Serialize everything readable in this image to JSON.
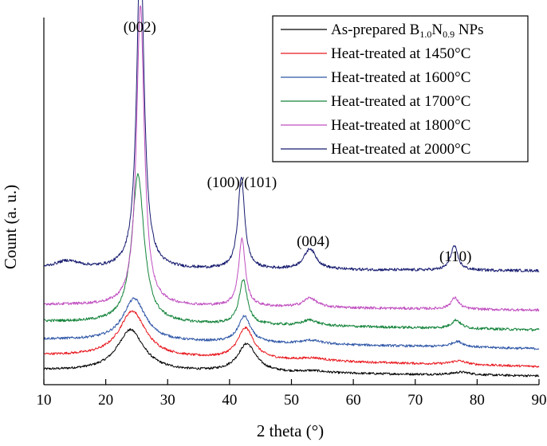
{
  "chart_data": {
    "type": "line",
    "title": "",
    "xlabel": "2 theta (°)",
    "ylabel": "Count (a. u.)",
    "xlim": [
      10,
      90
    ],
    "xticks": [
      10,
      20,
      30,
      40,
      50,
      60,
      70,
      80,
      90
    ],
    "y_ticks_labeled": false,
    "grid": false,
    "legend_position": "top-right",
    "annotations": [
      {
        "text": "(002)",
        "x": 25.5
      },
      {
        "text": "(100)/(101)",
        "x": 42
      },
      {
        "text": "(004)",
        "x": 53.5
      },
      {
        "text": "(110)",
        "x": 76.5
      }
    ],
    "series": [
      {
        "name": "As-prepared B1.0N0.9 NPs",
        "legend_parts": [
          [
            "As-prepared B",
            ""
          ],
          [
            "1.0",
            "sub"
          ],
          [
            "N",
            ""
          ],
          [
            "0.9",
            "sub"
          ],
          [
            " NPs",
            ""
          ]
        ],
        "color": "#000000",
        "base": 0.0,
        "baseline_slope": -0.06,
        "noise": 0.012,
        "peaks": [
          {
            "center": 24.0,
            "height": 0.44,
            "width": 2.6
          },
          {
            "center": 42.8,
            "height": 0.3,
            "width": 1.8
          },
          {
            "center": 53.5,
            "height": 0.02,
            "width": 2.5
          },
          {
            "center": 77.5,
            "height": 0.03,
            "width": 1.8
          }
        ]
      },
      {
        "name": "Heat-treated at 1450°C",
        "color": "#e8191f",
        "base": 0.16,
        "baseline_slope": -0.12,
        "noise": 0.012,
        "peaks": [
          {
            "center": 24.3,
            "height": 0.49,
            "width": 2.6
          },
          {
            "center": 42.6,
            "height": 0.33,
            "width": 1.6
          },
          {
            "center": 53.5,
            "height": 0.03,
            "width": 2.5
          },
          {
            "center": 77.0,
            "height": 0.04,
            "width": 1.5
          }
        ]
      },
      {
        "name": "Heat-treated at 1600°C",
        "color": "#2e56a7",
        "base": 0.33,
        "baseline_slope": -0.1,
        "noise": 0.013,
        "peaks": [
          {
            "center": 24.6,
            "height": 0.45,
            "width": 2.2
          },
          {
            "center": 42.4,
            "height": 0.28,
            "width": 1.2
          },
          {
            "center": 53.2,
            "height": 0.04,
            "width": 2.0
          },
          {
            "center": 76.8,
            "height": 0.06,
            "width": 1.2
          }
        ]
      },
      {
        "name": "Heat-treated at 1700°C",
        "color": "#13833a",
        "base": 0.52,
        "baseline_slope": -0.09,
        "noise": 0.014,
        "peaks": [
          {
            "center": 25.2,
            "height": 1.58,
            "width": 1.2
          },
          {
            "center": 42.2,
            "height": 0.47,
            "width": 0.8
          },
          {
            "center": 53.0,
            "height": 0.06,
            "width": 1.5
          },
          {
            "center": 76.6,
            "height": 0.09,
            "width": 0.9
          }
        ]
      },
      {
        "name": "Heat-treated at 1800°C",
        "color": "#c04fc0",
        "base": 0.7,
        "baseline_slope": -0.06,
        "noise": 0.014,
        "peaks": [
          {
            "center": 25.6,
            "height": 3.2,
            "width": 0.75
          },
          {
            "center": 42.0,
            "height": 0.72,
            "width": 0.65
          },
          {
            "center": 53.0,
            "height": 0.1,
            "width": 1.3
          },
          {
            "center": 76.4,
            "height": 0.12,
            "width": 0.8
          }
        ]
      },
      {
        "name": "Heat-treated at 2000°C",
        "color": "#151a6e",
        "base": 1.08,
        "baseline_slope": -0.02,
        "noise": 0.015,
        "peaks": [
          {
            "center": 13.8,
            "height": 0.08,
            "width": 2.5
          },
          {
            "center": 25.6,
            "height": 3.5,
            "width": 0.7
          },
          {
            "center": 41.9,
            "height": 0.98,
            "width": 0.65
          },
          {
            "center": 53.0,
            "height": 0.22,
            "width": 1.2
          },
          {
            "center": 76.3,
            "height": 0.26,
            "width": 0.7
          }
        ]
      }
    ]
  }
}
